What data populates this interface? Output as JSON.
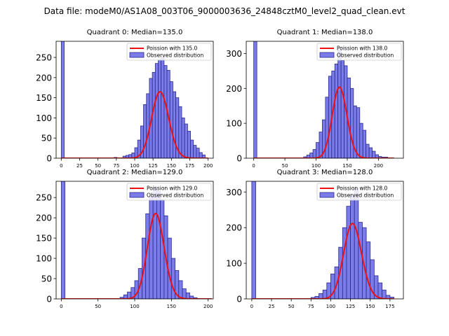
{
  "figure_title": "Data file: modeM0/AS1A08_003T06_9000003636_24848cztM0_level2_quad_clean.evt",
  "colors": {
    "bar_fill": "#7b7bea",
    "bar_edge": "#2a2a8a",
    "curve": "#ee1111",
    "axes": "#000000",
    "background": "#ffffff"
  },
  "chart_data": [
    {
      "type": "bar",
      "title": "Quadrant 0: Median=135.0",
      "median": 135.0,
      "xlim": [
        -7,
        207
      ],
      "ylim": [
        0,
        290
      ],
      "xticks": [
        0,
        25,
        50,
        75,
        100,
        125,
        150,
        175,
        200
      ],
      "yticks": [
        0,
        50,
        100,
        150,
        200,
        250
      ],
      "bin_width": 4,
      "bins": [
        [
          0,
          290
        ],
        [
          72,
          2
        ],
        [
          84,
          5
        ],
        [
          88,
          7
        ],
        [
          92,
          9
        ],
        [
          96,
          13
        ],
        [
          100,
          26
        ],
        [
          104,
          45
        ],
        [
          108,
          80
        ],
        [
          112,
          133
        ],
        [
          116,
          160
        ],
        [
          120,
          198
        ],
        [
          124,
          213
        ],
        [
          128,
          235
        ],
        [
          132,
          245
        ],
        [
          136,
          250
        ],
        [
          140,
          230
        ],
        [
          144,
          218
        ],
        [
          148,
          190
        ],
        [
          152,
          165
        ],
        [
          156,
          150
        ],
        [
          160,
          128
        ],
        [
          164,
          100
        ],
        [
          168,
          85
        ],
        [
          172,
          67
        ],
        [
          176,
          45
        ],
        [
          180,
          32
        ],
        [
          184,
          25
        ],
        [
          188,
          14
        ],
        [
          192,
          8
        ]
      ],
      "curve_mean": 135,
      "curve_x": [
        0,
        200
      ],
      "legend": [
        "Poission with 135.0",
        "Observed distribution"
      ]
    },
    {
      "type": "bar",
      "title": "Quadrant 1: Median=138.0",
      "median": 138.0,
      "xlim": [
        -12,
        240
      ],
      "ylim": [
        0,
        335
      ],
      "xticks": [
        0,
        50,
        100,
        150,
        200
      ],
      "yticks": [
        0,
        100,
        200,
        300
      ],
      "bin_width": 5,
      "bins": [
        [
          0,
          335
        ],
        [
          80,
          4
        ],
        [
          85,
          9
        ],
        [
          90,
          15
        ],
        [
          95,
          25
        ],
        [
          100,
          45
        ],
        [
          105,
          75
        ],
        [
          110,
          110
        ],
        [
          115,
          175
        ],
        [
          120,
          235
        ],
        [
          125,
          250
        ],
        [
          130,
          270
        ],
        [
          135,
          310
        ],
        [
          140,
          280
        ],
        [
          145,
          265
        ],
        [
          150,
          230
        ],
        [
          155,
          200
        ],
        [
          160,
          150
        ],
        [
          165,
          145
        ],
        [
          170,
          100
        ],
        [
          175,
          80
        ],
        [
          180,
          40
        ],
        [
          185,
          30
        ],
        [
          190,
          20
        ],
        [
          195,
          10
        ],
        [
          200,
          5
        ],
        [
          205,
          3
        ],
        [
          210,
          3
        ]
      ],
      "curve_mean": 138,
      "curve_x": [
        0,
        225
      ],
      "legend": [
        "Poission with 138.0",
        "Observed distribution"
      ]
    },
    {
      "type": "bar",
      "title": "Quadrant 2: Median=129.0",
      "median": 129.0,
      "xlim": [
        -7,
        207
      ],
      "ylim": [
        0,
        290
      ],
      "xticks": [
        0,
        50,
        100,
        150,
        200
      ],
      "yticks": [
        0,
        50,
        100,
        150,
        200,
        250
      ],
      "bin_width": 5,
      "bins": [
        [
          0,
          290
        ],
        [
          80,
          4
        ],
        [
          85,
          10
        ],
        [
          90,
          17
        ],
        [
          95,
          28
        ],
        [
          100,
          45
        ],
        [
          105,
          75
        ],
        [
          110,
          150
        ],
        [
          115,
          210
        ],
        [
          120,
          250
        ],
        [
          125,
          275
        ],
        [
          130,
          265
        ],
        [
          135,
          245
        ],
        [
          140,
          205
        ],
        [
          145,
          150
        ],
        [
          150,
          100
        ],
        [
          155,
          70
        ],
        [
          160,
          45
        ],
        [
          165,
          25
        ],
        [
          170,
          15
        ],
        [
          175,
          7
        ],
        [
          180,
          3
        ]
      ],
      "curve_mean": 129,
      "curve_x": [
        0,
        205
      ],
      "legend": [
        "Poission with 129.0",
        "Observed distribution"
      ]
    },
    {
      "type": "bar",
      "title": "Quadrant 3: Median=128.0",
      "median": 128.0,
      "xlim": [
        -7,
        192
      ],
      "ylim": [
        0,
        330
      ],
      "xticks": [
        0,
        25,
        50,
        75,
        100,
        125,
        150,
        175
      ],
      "yticks": [
        0,
        100,
        200,
        300
      ],
      "bin_width": 5,
      "bins": [
        [
          0,
          330
        ],
        [
          75,
          4
        ],
        [
          80,
          7
        ],
        [
          85,
          15
        ],
        [
          90,
          25
        ],
        [
          95,
          45
        ],
        [
          100,
          70
        ],
        [
          105,
          90
        ],
        [
          110,
          145
        ],
        [
          115,
          200
        ],
        [
          120,
          260
        ],
        [
          125,
          290
        ],
        [
          130,
          310
        ],
        [
          135,
          215
        ],
        [
          140,
          200
        ],
        [
          145,
          160
        ],
        [
          150,
          110
        ],
        [
          155,
          65
        ],
        [
          160,
          45
        ],
        [
          165,
          25
        ],
        [
          170,
          10
        ],
        [
          175,
          5
        ]
      ],
      "curve_mean": 128,
      "curve_x": [
        0,
        180
      ],
      "legend": [
        "Poission with 128.0",
        "Observed distribution"
      ]
    }
  ]
}
